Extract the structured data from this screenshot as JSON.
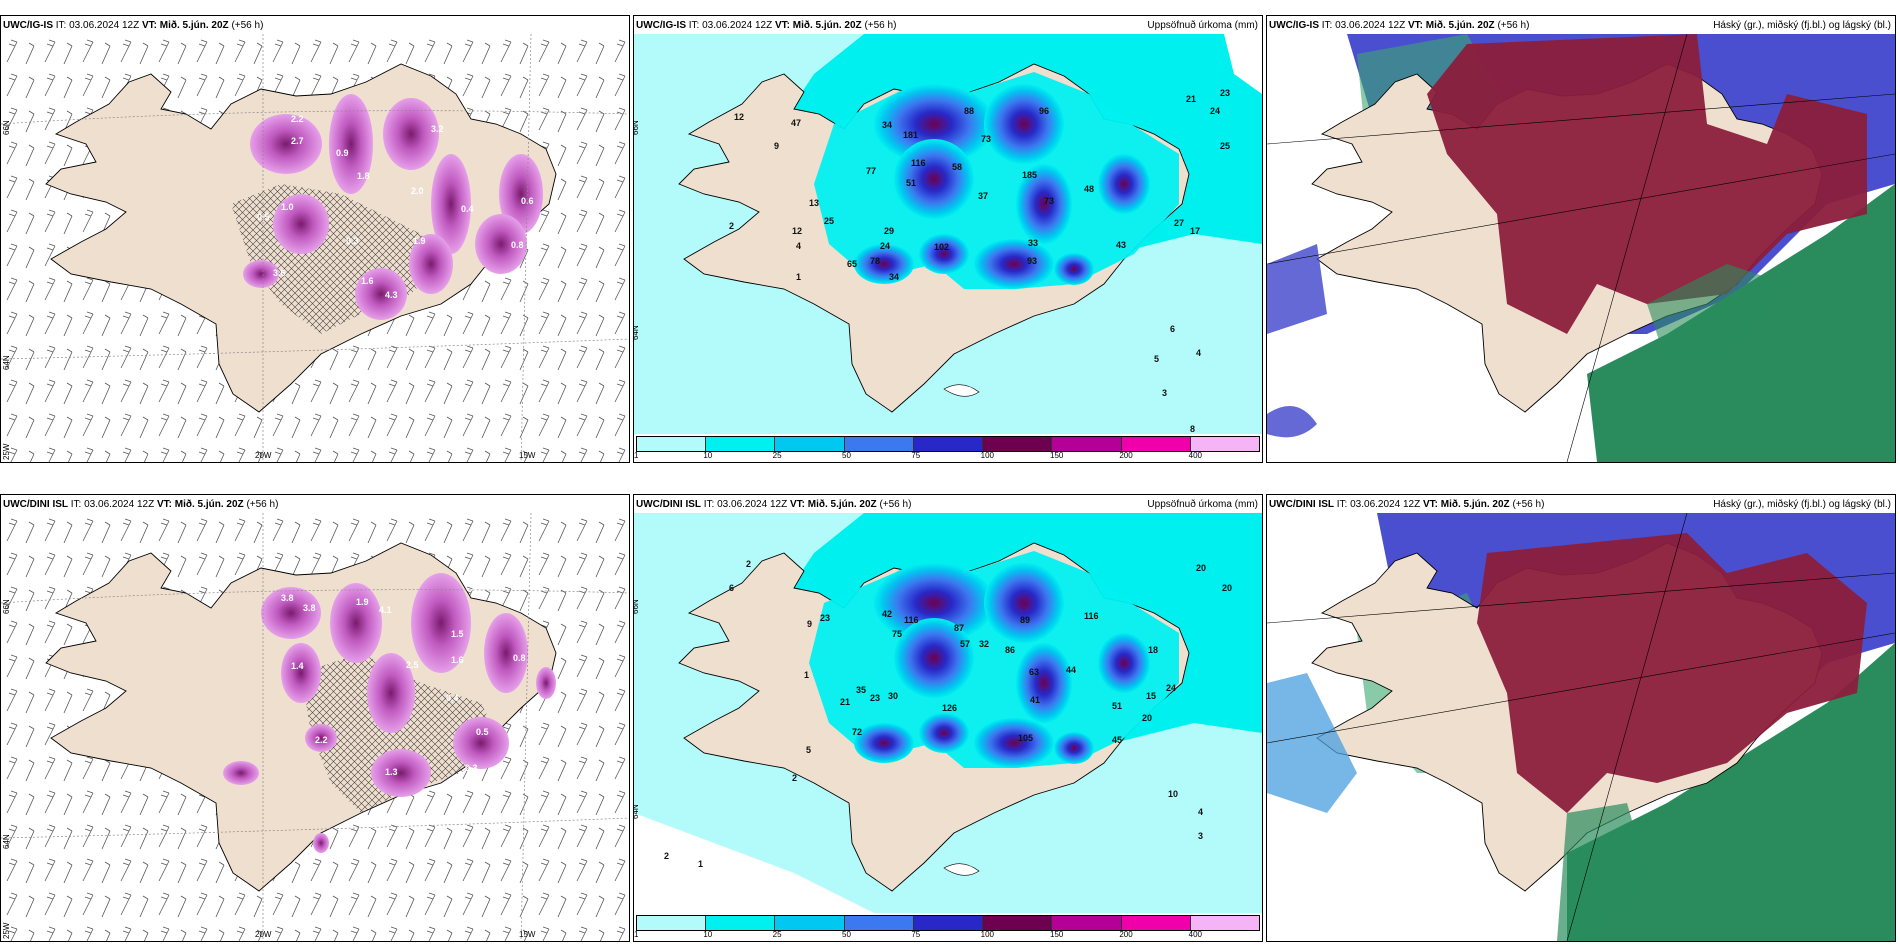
{
  "panels": {
    "r1c1": {
      "model": "UWC/IG-IS",
      "it_label": "IT:",
      "it_value": "03.06.2024 12Z",
      "vt_label": "VT:",
      "vt_value": "Mið. 5.jún. 20Z",
      "lead": "(+56 h)",
      "title_right": ""
    },
    "r1c2": {
      "model": "UWC/IG-IS",
      "it_label": "IT:",
      "it_value": "03.06.2024 12Z",
      "vt_label": "VT:",
      "vt_value": "Mið. 5.jún. 20Z",
      "lead": "(+56 h)",
      "title_right": "Uppsöfnuð úrkoma (mm)"
    },
    "r1c3": {
      "model": "UWC/IG-IS",
      "it_label": "IT:",
      "it_value": "03.06.2024 12Z",
      "vt_label": "VT:",
      "vt_value": "Mið. 5.jún. 20Z",
      "lead": "(+56 h)",
      "title_right": "Háský (gr.), miðský (fj.bl.) og lágský (bl.)"
    },
    "r2c1": {
      "model": "UWC/DINI ISL",
      "it_label": "IT:",
      "it_value": "03.06.2024 12Z",
      "vt_label": "VT:",
      "vt_value": "Mið. 5.jún. 20Z",
      "lead": "(+56 h)",
      "title_right": ""
    },
    "r2c2": {
      "model": "UWC/DINI ISL",
      "it_label": "IT:",
      "it_value": "03.06.2024 12Z",
      "vt_label": "VT:",
      "vt_value": "Mið. 5.jún. 20Z",
      "lead": "(+56 h)",
      "title_right": "Uppsöfnuð úrkoma (mm)"
    },
    "r2c3": {
      "model": "UWC/DINI ISL",
      "it_label": "IT:",
      "it_value": "03.06.2024 12Z",
      "vt_label": "VT:",
      "vt_value": "Mið. 5.jún. 20Z",
      "lead": "(+56 h)",
      "title_right": "Háský (gr.), miðský (fj.bl.) og lágský (bl.)"
    }
  },
  "axis_labels": {
    "lat_66": "66N",
    "lat_64": "64N",
    "lon_25": "25W",
    "lon_20": "20W",
    "lon_15": "15W"
  },
  "colorbar": {
    "ticks": [
      "1",
      "10",
      "25",
      "50",
      "75",
      "100",
      "150",
      "200",
      "400"
    ],
    "colors": [
      "#b3fbfb",
      "#00f0f0",
      "#00c8f0",
      "#3c78f0",
      "#2828c8",
      "#6e0050",
      "#b40096",
      "#f000aa",
      "#f5b4f5"
    ]
  },
  "snow_labels_r1": [
    "2.2",
    "2.7",
    "0.9",
    "1.8",
    "3.2",
    "2.0",
    "1.0",
    "0.4",
    "0.5",
    "3.6",
    "1.6",
    "4.3",
    "1.9",
    "0.8",
    "0.4",
    "0.6",
    "0.3"
  ],
  "snow_labels_r2": [
    "3.8",
    "1.9",
    "4.1",
    "2.4",
    "1.5",
    "2.5",
    "1.6",
    "1.4",
    "0.8",
    "0.4",
    "2.2",
    "1.3",
    "0.3",
    "0.5",
    "1.3",
    "3.8"
  ],
  "precip_labels_r1": [
    "12",
    "47",
    "34",
    "181",
    "88",
    "73",
    "116",
    "96",
    "77",
    "37",
    "51",
    "58",
    "185",
    "48",
    "73",
    "33",
    "29",
    "102",
    "24",
    "34",
    "78",
    "65",
    "93",
    "13",
    "25",
    "12",
    "9",
    "4",
    "2",
    "1",
    "21",
    "23",
    "24",
    "25",
    "17",
    "27",
    "43",
    "6",
    "5",
    "4",
    "3",
    "8"
  ],
  "precip_labels_r2": [
    "2",
    "6",
    "23",
    "42",
    "116",
    "75",
    "57",
    "87",
    "32",
    "86",
    "89",
    "116",
    "63",
    "44",
    "18",
    "24",
    "15",
    "20",
    "51",
    "45",
    "105",
    "41",
    "30",
    "23",
    "21",
    "35",
    "126",
    "72",
    "20",
    "10",
    "4",
    "3",
    "2",
    "1",
    "5",
    "9",
    "1",
    "2",
    "20"
  ],
  "colors": {
    "land": "#efdfcf",
    "coast": "#000000",
    "cloud_high": "#8b1d3c",
    "cloud_mid": "#2a8c5c",
    "cloud_low": "#4a4fcf"
  }
}
